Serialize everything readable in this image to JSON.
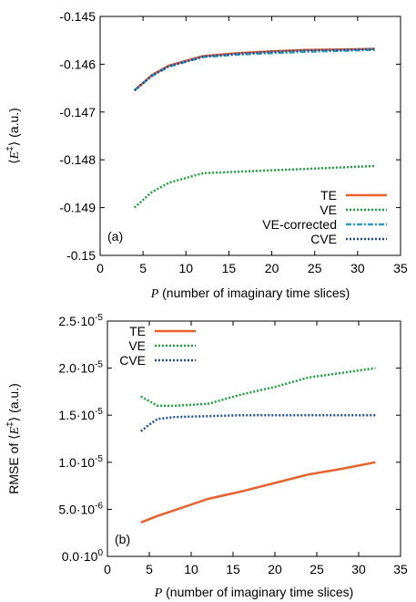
{
  "chart_data": [
    {
      "type": "line",
      "panel_label": "(a)",
      "xlabel_var": "P",
      "xlabel": "(number of imaginary time slices)",
      "ylabel_prefix": "⟨",
      "ylabel_var": "E",
      "ylabel_sup": "‡",
      "ylabel_suffix": "⟩ (a.u.)",
      "xlim": [
        0,
        35
      ],
      "ylim": [
        -0.15,
        -0.145
      ],
      "xticks": [
        "0",
        "5",
        "10",
        "15",
        "20",
        "25",
        "30",
        "35"
      ],
      "yticks": [
        "-0.15",
        "-0.149",
        "-0.148",
        "-0.147",
        "-0.146",
        "-0.145"
      ],
      "legend_position": "bottom-right",
      "x": [
        4,
        6,
        8,
        12,
        16,
        20,
        24,
        28,
        32
      ],
      "series": [
        {
          "name": "TE",
          "color": "#e8602c",
          "dash": "solid",
          "values": [
            -0.14655,
            -0.14623,
            -0.14603,
            -0.14583,
            -0.14577,
            -0.14573,
            -0.1457,
            -0.14569,
            -0.14568
          ]
        },
        {
          "name": "VE",
          "color": "#1ba33a",
          "dash": "dotted",
          "values": [
            -0.149,
            -0.14868,
            -0.14848,
            -0.14828,
            -0.14825,
            -0.14822,
            -0.14819,
            -0.14816,
            -0.14813
          ]
        },
        {
          "name": "VE-corrected",
          "color": "#2a9fbf",
          "dash": "dashdot",
          "values": [
            -0.14655,
            -0.14625,
            -0.14605,
            -0.14585,
            -0.1458,
            -0.14577,
            -0.14574,
            -0.14572,
            -0.1457
          ]
        },
        {
          "name": "CVE",
          "color": "#1d4fa0",
          "dash": "dotted",
          "values": [
            -0.14655,
            -0.14624,
            -0.14604,
            -0.14584,
            -0.14578,
            -0.14574,
            -0.14571,
            -0.1457,
            -0.14568
          ]
        }
      ]
    },
    {
      "type": "line",
      "panel_label": "(b)",
      "xlabel_var": "P",
      "xlabel": "(number of imaginary time slices)",
      "ylabel_prefix": "RMSE of ⟨",
      "ylabel_var": "E",
      "ylabel_sup": "‡",
      "ylabel_suffix": "⟩ (a.u.)",
      "xlim": [
        0,
        35
      ],
      "ylim": [
        0,
        2.5e-05
      ],
      "xticks": [
        "0",
        "5",
        "10",
        "15",
        "20",
        "25",
        "30",
        "35"
      ],
      "yticks": [
        {
          "mant": "0.0·10",
          "exp": "0"
        },
        {
          "mant": "5.0·10",
          "exp": "-6"
        },
        {
          "mant": "1.0·10",
          "exp": "-5"
        },
        {
          "mant": "1.5·10",
          "exp": "-5"
        },
        {
          "mant": "2.0·10",
          "exp": "-5"
        },
        {
          "mant": "2.5·10",
          "exp": "-5"
        }
      ],
      "legend_position": "top-left",
      "series": [
        {
          "name": "TE",
          "color": "#e8602c",
          "dash": "solid",
          "x": [
            4,
            6,
            8,
            12,
            16,
            20,
            24,
            28,
            32
          ],
          "values": [
            3.6e-06,
            4.3e-06,
            4.9e-06,
            6.1e-06,
            6.9e-06,
            7.8e-06,
            8.7e-06,
            9.3e-06,
            1e-05
          ]
        },
        {
          "name": "VE",
          "color": "#1ba33a",
          "dash": "dotted",
          "x": [
            4,
            6,
            8,
            12,
            16,
            20,
            24,
            28,
            32
          ],
          "values": [
            1.7e-05,
            1.6e-05,
            1.6e-05,
            1.62e-05,
            1.72e-05,
            1.8e-05,
            1.9e-05,
            1.95e-05,
            2e-05
          ]
        },
        {
          "name": "CVE",
          "color": "#1d4fa0",
          "dash": "dotted",
          "x": [
            4,
            5,
            6,
            8,
            12,
            16,
            20,
            24,
            28,
            32
          ],
          "values": [
            1.33e-05,
            1.4e-05,
            1.46e-05,
            1.48e-05,
            1.49e-05,
            1.5e-05,
            1.5e-05,
            1.5e-05,
            1.5e-05,
            1.5e-05
          ]
        }
      ]
    }
  ]
}
